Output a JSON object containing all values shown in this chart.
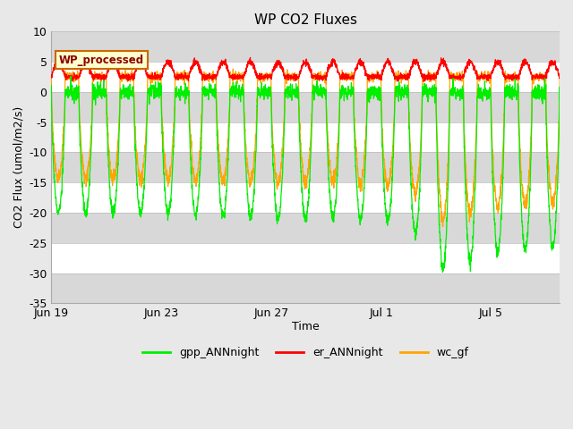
{
  "title": "WP CO2 Fluxes",
  "xlabel": "Time",
  "ylabel_display": "CO2 Flux (umol/m2/s)",
  "ylim": [
    -35,
    10
  ],
  "yticks": [
    -35,
    -30,
    -25,
    -20,
    -15,
    -10,
    -5,
    0,
    5,
    10
  ],
  "xtick_labels": [
    "Jun 19",
    "Jun 23",
    "Jun 27",
    "Jul 1",
    "Jul 5"
  ],
  "xtick_positions": [
    0,
    4,
    8,
    12,
    16
  ],
  "xlim": [
    0,
    18.5
  ],
  "annotation_text": "WP_processed",
  "annotation_bg": "#ffffcc",
  "annotation_fg": "#8b0000",
  "annotation_edge": "#cc6600",
  "color_gpp": "#00ee00",
  "color_er": "#ff0000",
  "color_wc": "#ffa500",
  "legend_labels": [
    "gpp_ANNnight",
    "er_ANNnight",
    "wc_gf"
  ],
  "fig_bg": "#e8e8e8",
  "plot_bg": "#ffffff",
  "band_color": "#d8d8d8",
  "n_days": 19,
  "pts_per_day": 144
}
